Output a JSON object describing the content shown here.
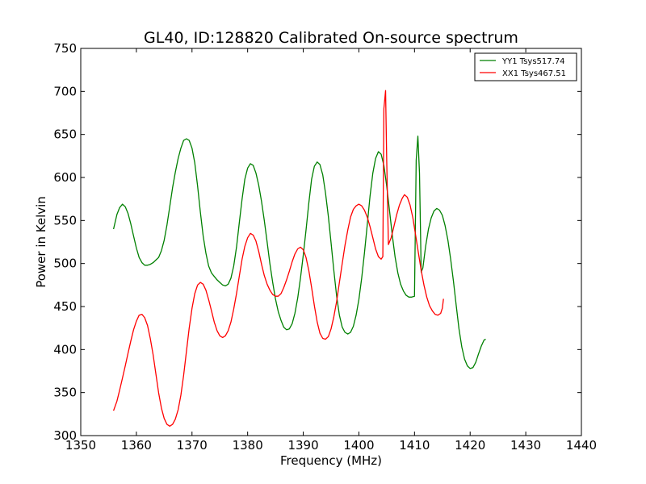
{
  "chart_data": {
    "type": "line",
    "title": "GL40, ID:128820 Calibrated On-source spectrum",
    "xlabel": "Frequency (MHz)",
    "ylabel": "Power in Kelvin",
    "xlim": [
      1350,
      1440
    ],
    "ylim": [
      300,
      750
    ],
    "xticks": [
      1350,
      1360,
      1370,
      1380,
      1390,
      1400,
      1410,
      1420,
      1430,
      1440
    ],
    "yticks": [
      300,
      350,
      400,
      450,
      500,
      550,
      600,
      650,
      700,
      750
    ],
    "grid": false,
    "legend_position": "top-right",
    "series": [
      {
        "name": "YY1 Tsys517.74",
        "color": "#008000",
        "points": [
          [
            1355.9,
            540
          ],
          [
            1356.5,
            557
          ],
          [
            1357.0,
            565
          ],
          [
            1357.5,
            569
          ],
          [
            1358.0,
            566
          ],
          [
            1358.5,
            558
          ],
          [
            1359.0,
            546
          ],
          [
            1359.5,
            532
          ],
          [
            1360.0,
            518
          ],
          [
            1360.5,
            507
          ],
          [
            1361.0,
            501
          ],
          [
            1361.5,
            498
          ],
          [
            1362.0,
            498
          ],
          [
            1362.5,
            499
          ],
          [
            1363.0,
            501
          ],
          [
            1363.5,
            504
          ],
          [
            1364.0,
            507
          ],
          [
            1364.5,
            515
          ],
          [
            1365.0,
            527
          ],
          [
            1365.5,
            545
          ],
          [
            1366.0,
            566
          ],
          [
            1366.5,
            588
          ],
          [
            1367.0,
            606
          ],
          [
            1367.5,
            622
          ],
          [
            1368.0,
            634
          ],
          [
            1368.5,
            643
          ],
          [
            1369.0,
            645
          ],
          [
            1369.5,
            643
          ],
          [
            1370.0,
            634
          ],
          [
            1370.5,
            617
          ],
          [
            1371.0,
            590
          ],
          [
            1371.5,
            560
          ],
          [
            1372.0,
            532
          ],
          [
            1372.5,
            512
          ],
          [
            1373.0,
            497
          ],
          [
            1373.5,
            489
          ],
          [
            1374.0,
            485
          ],
          [
            1374.5,
            481
          ],
          [
            1375.0,
            478
          ],
          [
            1375.5,
            475
          ],
          [
            1376.0,
            474
          ],
          [
            1376.5,
            476
          ],
          [
            1377.0,
            483
          ],
          [
            1377.5,
            497
          ],
          [
            1378.0,
            519
          ],
          [
            1378.5,
            547
          ],
          [
            1379.0,
            575
          ],
          [
            1379.5,
            598
          ],
          [
            1380.0,
            611
          ],
          [
            1380.5,
            616
          ],
          [
            1381.0,
            614
          ],
          [
            1381.5,
            605
          ],
          [
            1382.0,
            591
          ],
          [
            1382.5,
            572
          ],
          [
            1383.0,
            550
          ],
          [
            1383.5,
            525
          ],
          [
            1384.0,
            500
          ],
          [
            1384.5,
            478
          ],
          [
            1385.0,
            459
          ],
          [
            1385.5,
            444
          ],
          [
            1386.0,
            434
          ],
          [
            1386.5,
            426
          ],
          [
            1387.0,
            423
          ],
          [
            1387.5,
            424
          ],
          [
            1388.0,
            430
          ],
          [
            1388.5,
            442
          ],
          [
            1389.0,
            460
          ],
          [
            1389.5,
            483
          ],
          [
            1390.0,
            510
          ],
          [
            1390.5,
            539
          ],
          [
            1391.0,
            570
          ],
          [
            1391.5,
            598
          ],
          [
            1392.0,
            613
          ],
          [
            1392.5,
            618
          ],
          [
            1393.0,
            615
          ],
          [
            1393.5,
            603
          ],
          [
            1394.0,
            582
          ],
          [
            1394.5,
            555
          ],
          [
            1395.0,
            524
          ],
          [
            1395.5,
            492
          ],
          [
            1396.0,
            462
          ],
          [
            1396.5,
            440
          ],
          [
            1397.0,
            426
          ],
          [
            1397.5,
            420
          ],
          [
            1398.0,
            418
          ],
          [
            1398.5,
            420
          ],
          [
            1399.0,
            427
          ],
          [
            1399.5,
            440
          ],
          [
            1400.0,
            458
          ],
          [
            1400.5,
            483
          ],
          [
            1401.0,
            512
          ],
          [
            1401.5,
            545
          ],
          [
            1402.0,
            578
          ],
          [
            1402.5,
            605
          ],
          [
            1403.0,
            622
          ],
          [
            1403.5,
            630
          ],
          [
            1404.0,
            627
          ],
          [
            1404.5,
            614
          ],
          [
            1405.0,
            590
          ],
          [
            1405.5,
            562
          ],
          [
            1406.0,
            533
          ],
          [
            1406.5,
            508
          ],
          [
            1407.0,
            489
          ],
          [
            1407.5,
            476
          ],
          [
            1408.0,
            468
          ],
          [
            1408.5,
            463
          ],
          [
            1409.0,
            461
          ],
          [
            1409.5,
            461
          ],
          [
            1410.0,
            462
          ],
          [
            1410.3,
            620
          ],
          [
            1410.6,
            648
          ],
          [
            1410.9,
            605
          ],
          [
            1411.2,
            490
          ],
          [
            1411.5,
            495
          ],
          [
            1412.0,
            520
          ],
          [
            1412.5,
            540
          ],
          [
            1413.0,
            553
          ],
          [
            1413.5,
            561
          ],
          [
            1414.0,
            564
          ],
          [
            1414.5,
            562
          ],
          [
            1415.0,
            556
          ],
          [
            1415.5,
            544
          ],
          [
            1416.0,
            527
          ],
          [
            1416.5,
            505
          ],
          [
            1417.0,
            479
          ],
          [
            1417.5,
            451
          ],
          [
            1418.0,
            424
          ],
          [
            1418.5,
            403
          ],
          [
            1419.0,
            389
          ],
          [
            1419.5,
            381
          ],
          [
            1420.0,
            378
          ],
          [
            1420.5,
            379
          ],
          [
            1421.0,
            385
          ],
          [
            1421.5,
            395
          ],
          [
            1422.0,
            404
          ],
          [
            1422.5,
            411
          ],
          [
            1422.8,
            412
          ]
        ]
      },
      {
        "name": "XX1 Tsys467.51",
        "color": "#ff0000",
        "points": [
          [
            1355.9,
            329
          ],
          [
            1356.5,
            340
          ],
          [
            1357.0,
            353
          ],
          [
            1357.5,
            367
          ],
          [
            1358.0,
            381
          ],
          [
            1358.5,
            396
          ],
          [
            1359.0,
            410
          ],
          [
            1359.5,
            423
          ],
          [
            1360.0,
            433
          ],
          [
            1360.5,
            440
          ],
          [
            1361.0,
            441
          ],
          [
            1361.5,
            437
          ],
          [
            1362.0,
            428
          ],
          [
            1362.5,
            413
          ],
          [
            1363.0,
            394
          ],
          [
            1363.5,
            372
          ],
          [
            1364.0,
            350
          ],
          [
            1364.5,
            332
          ],
          [
            1365.0,
            320
          ],
          [
            1365.5,
            313
          ],
          [
            1366.0,
            311
          ],
          [
            1366.5,
            313
          ],
          [
            1367.0,
            319
          ],
          [
            1367.5,
            330
          ],
          [
            1368.0,
            347
          ],
          [
            1368.5,
            370
          ],
          [
            1369.0,
            398
          ],
          [
            1369.5,
            425
          ],
          [
            1370.0,
            448
          ],
          [
            1370.5,
            465
          ],
          [
            1371.0,
            475
          ],
          [
            1371.5,
            478
          ],
          [
            1372.0,
            476
          ],
          [
            1372.5,
            469
          ],
          [
            1373.0,
            458
          ],
          [
            1373.5,
            445
          ],
          [
            1374.0,
            432
          ],
          [
            1374.5,
            422
          ],
          [
            1375.0,
            416
          ],
          [
            1375.5,
            414
          ],
          [
            1376.0,
            416
          ],
          [
            1376.5,
            422
          ],
          [
            1377.0,
            432
          ],
          [
            1377.5,
            447
          ],
          [
            1378.0,
            465
          ],
          [
            1378.5,
            485
          ],
          [
            1379.0,
            505
          ],
          [
            1379.5,
            520
          ],
          [
            1380.0,
            530
          ],
          [
            1380.5,
            535
          ],
          [
            1381.0,
            533
          ],
          [
            1381.5,
            526
          ],
          [
            1382.0,
            514
          ],
          [
            1382.5,
            499
          ],
          [
            1383.0,
            486
          ],
          [
            1383.5,
            476
          ],
          [
            1384.0,
            469
          ],
          [
            1384.5,
            464
          ],
          [
            1385.0,
            462
          ],
          [
            1385.5,
            462
          ],
          [
            1386.0,
            465
          ],
          [
            1386.5,
            472
          ],
          [
            1387.0,
            481
          ],
          [
            1387.5,
            491
          ],
          [
            1388.0,
            502
          ],
          [
            1388.5,
            511
          ],
          [
            1389.0,
            517
          ],
          [
            1389.5,
            519
          ],
          [
            1390.0,
            516
          ],
          [
            1390.5,
            507
          ],
          [
            1391.0,
            492
          ],
          [
            1391.5,
            472
          ],
          [
            1392.0,
            451
          ],
          [
            1392.5,
            432
          ],
          [
            1393.0,
            419
          ],
          [
            1393.5,
            413
          ],
          [
            1394.0,
            412
          ],
          [
            1394.5,
            415
          ],
          [
            1395.0,
            424
          ],
          [
            1395.5,
            438
          ],
          [
            1396.0,
            456
          ],
          [
            1396.5,
            478
          ],
          [
            1397.0,
            500
          ],
          [
            1397.5,
            521
          ],
          [
            1398.0,
            539
          ],
          [
            1398.5,
            554
          ],
          [
            1399.0,
            563
          ],
          [
            1399.5,
            567
          ],
          [
            1400.0,
            569
          ],
          [
            1400.5,
            567
          ],
          [
            1401.0,
            562
          ],
          [
            1401.5,
            554
          ],
          [
            1402.0,
            543
          ],
          [
            1402.5,
            530
          ],
          [
            1403.0,
            517
          ],
          [
            1403.5,
            508
          ],
          [
            1404.0,
            505
          ],
          [
            1404.3,
            508
          ],
          [
            1404.5,
            680
          ],
          [
            1404.8,
            701
          ],
          [
            1405.0,
            620
          ],
          [
            1405.3,
            522
          ],
          [
            1405.8,
            530
          ],
          [
            1406.3,
            543
          ],
          [
            1406.8,
            557
          ],
          [
            1407.3,
            568
          ],
          [
            1407.8,
            576
          ],
          [
            1408.2,
            580
          ],
          [
            1408.7,
            577
          ],
          [
            1409.2,
            568
          ],
          [
            1409.7,
            553
          ],
          [
            1410.2,
            533
          ],
          [
            1410.7,
            512
          ],
          [
            1411.2,
            492
          ],
          [
            1411.7,
            475
          ],
          [
            1412.2,
            461
          ],
          [
            1412.7,
            451
          ],
          [
            1413.2,
            445
          ],
          [
            1413.7,
            441
          ],
          [
            1414.2,
            440
          ],
          [
            1414.7,
            442
          ],
          [
            1415.0,
            448
          ],
          [
            1415.2,
            459
          ]
        ]
      }
    ]
  }
}
